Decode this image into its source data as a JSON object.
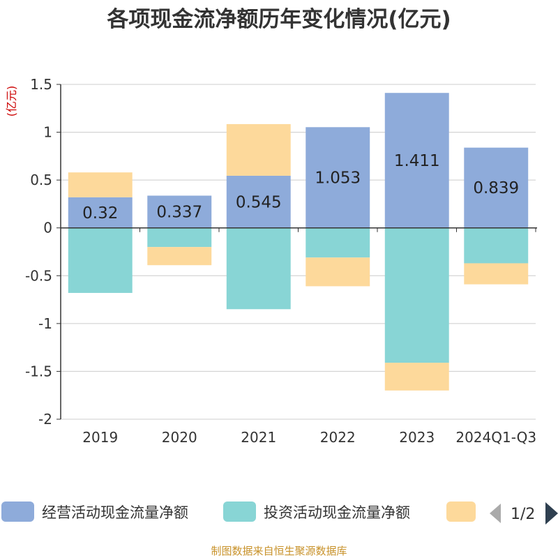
{
  "chart_data": {
    "type": "bar",
    "stacked": true,
    "title": "各项现金流净额历年变化情况(亿元)",
    "ylabel": "(亿元)",
    "ylim": [
      -2,
      1.5
    ],
    "yticks": [
      "1.5",
      "1",
      "0.5",
      "0",
      "-0.5",
      "-1",
      "-1.5",
      "-2"
    ],
    "grid": true,
    "legend_position": "bottom",
    "categories": [
      "2019",
      "2020",
      "2021",
      "2022",
      "2023",
      "2024Q1-Q3"
    ],
    "series": [
      {
        "name": "经营活动现金流量净额",
        "color": "#8eabda",
        "values": [
          0.32,
          0.337,
          0.545,
          1.053,
          1.411,
          0.839
        ],
        "labels": [
          "0.32",
          "0.337",
          "0.545",
          "1.053",
          "1.411",
          "0.839"
        ]
      },
      {
        "name": "投资活动现金流量净额",
        "color": "#88d5d5",
        "values": [
          -0.68,
          -0.2,
          -0.85,
          -0.31,
          -1.41,
          -0.37
        ]
      },
      {
        "name": "",
        "color": "#fdd99b",
        "values": [
          0.26,
          -0.19,
          0.54,
          -0.3,
          -0.29,
          -0.22
        ]
      }
    ]
  },
  "legend": {
    "page": "1/2"
  },
  "footer": "制图数据来自恒生聚源数据库"
}
